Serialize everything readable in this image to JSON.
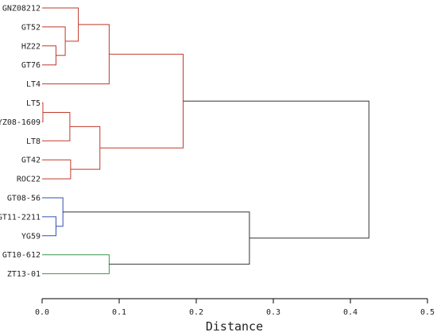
{
  "chart_data": {
    "type": "dendrogram",
    "xlabel": "Distance",
    "xlim": [
      0,
      0.5
    ],
    "x_ticks": [
      0.0,
      0.1,
      0.2,
      0.3,
      0.4,
      0.5
    ],
    "x_tick_labels": [
      "0.0",
      "0.1",
      "0.2",
      "0.3",
      "0.4",
      "0.5"
    ],
    "grid": false,
    "leaves": [
      "GNZ08212",
      "GT52",
      "HZ22",
      "GT76",
      "LT4",
      "LT5",
      "YZ08-1609",
      "LT8",
      "GT42",
      "ROC22",
      "GT08-56",
      "GT11-2211",
      "YG59",
      "GT10-612",
      "ZT13-01"
    ],
    "merges": [
      {
        "id": "m1",
        "children": [
          "HZ22",
          "GT76"
        ],
        "height": 0.018,
        "color": "#c0392b"
      },
      {
        "id": "m2",
        "children": [
          "GT52",
          "m1"
        ],
        "height": 0.03,
        "color": "#c0392b"
      },
      {
        "id": "m3",
        "children": [
          "GNZ08212",
          "m2"
        ],
        "height": 0.047,
        "color": "#c0392b"
      },
      {
        "id": "m4",
        "children": [
          "m3",
          "LT4"
        ],
        "height": 0.087,
        "color": "#c0392b"
      },
      {
        "id": "m5",
        "children": [
          "LT5",
          "YZ08-1609"
        ],
        "height": 0.001,
        "color": "#c0392b"
      },
      {
        "id": "m6",
        "children": [
          "m5",
          "LT8"
        ],
        "height": 0.036,
        "color": "#c0392b"
      },
      {
        "id": "m7",
        "children": [
          "GT42",
          "ROC22"
        ],
        "height": 0.037,
        "color": "#c0392b"
      },
      {
        "id": "m8",
        "children": [
          "m6",
          "m7"
        ],
        "height": 0.075,
        "color": "#c0392b"
      },
      {
        "id": "m9",
        "children": [
          "m4",
          "m8"
        ],
        "height": 0.183,
        "color": "#c0392b"
      },
      {
        "id": "m10",
        "children": [
          "GT11-2211",
          "YG59"
        ],
        "height": 0.018,
        "color": "#2f4fb5"
      },
      {
        "id": "m11",
        "children": [
          "GT08-56",
          "m10"
        ],
        "height": 0.027,
        "color": "#2f4fb5"
      },
      {
        "id": "m12",
        "children": [
          "GT10-612",
          "ZT13-01"
        ],
        "height": 0.087,
        "color": "#3a9a4a"
      },
      {
        "id": "m13",
        "children": [
          "m11",
          "m12"
        ],
        "height": 0.269,
        "color": "#333333"
      },
      {
        "id": "m14",
        "children": [
          "m9",
          "m13"
        ],
        "height": 0.424,
        "color": "#333333"
      }
    ]
  }
}
